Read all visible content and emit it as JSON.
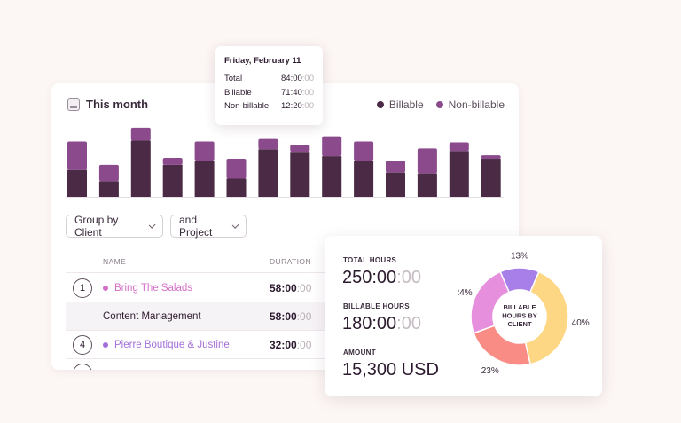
{
  "header": {
    "title": "This month"
  },
  "legend": [
    {
      "label": "Billable",
      "color": "#4a2a45"
    },
    {
      "label": "Non-billable",
      "color": "#8a4a8c"
    }
  ],
  "bar_chart": {
    "type": "bar",
    "stacked": true,
    "series": [
      {
        "name": "Billable",
        "color": "#4a2a45",
        "values": [
          31,
          18,
          65,
          37,
          42,
          21,
          55,
          52,
          47,
          42,
          28,
          27,
          53,
          44
        ]
      },
      {
        "name": "Non-billable",
        "color": "#8a4a8c",
        "values": [
          33,
          19,
          15,
          8,
          22,
          23,
          12,
          8,
          23,
          22,
          14,
          29,
          10,
          4
        ]
      }
    ],
    "ylim": [
      0,
      85
    ]
  },
  "tooltip": {
    "date": "Friday, February 11",
    "rows": [
      {
        "label": "Total",
        "value": "84:00",
        "suffix": ":00"
      },
      {
        "label": "Billable",
        "value": "71:40",
        "suffix": ":00"
      },
      {
        "label": "Non-billable",
        "value": "12:20",
        "suffix": ":00"
      }
    ]
  },
  "controls": {
    "group_by": "Group by Client",
    "and_project": "and Project"
  },
  "table": {
    "columns": {
      "name": "NAME",
      "duration": "DURATION"
    },
    "rows": [
      {
        "number": "1",
        "name": "Bring The Salads",
        "color": "#d46fc7",
        "duration": "58:00",
        "duration_suffix": ":00"
      },
      {
        "number": "",
        "name": "Content Management",
        "color": "",
        "duration": "58:00",
        "duration_suffix": ":00"
      },
      {
        "number": "4",
        "name": "Pierre Boutique & Justine",
        "color": "#a46fd9",
        "duration": "32:00",
        "duration_suffix": ":00"
      }
    ]
  },
  "summary": {
    "total_hours_label": "TOTAL HOURS",
    "total_hours": "250:00",
    "total_hours_suffix": ":00",
    "billable_hours_label": "BILLABLE HOURS",
    "billable_hours": "180:00",
    "billable_hours_suffix": ":00",
    "amount_label": "AMOUNT",
    "amount": "15,300 USD"
  },
  "chart_data": {
    "type": "pie",
    "donut": true,
    "center_label": [
      "BILLABLE",
      "HOURS BY",
      "CLIENT"
    ],
    "slices": [
      {
        "label": "13%",
        "value": 13,
        "color": "#a87ee8"
      },
      {
        "label": "40%",
        "value": 40,
        "color": "#fdd784"
      },
      {
        "label": "23%",
        "value": 23,
        "color": "#fa8c86"
      },
      {
        "label": "24%",
        "value": 24,
        "color": "#e690dd"
      }
    ]
  }
}
